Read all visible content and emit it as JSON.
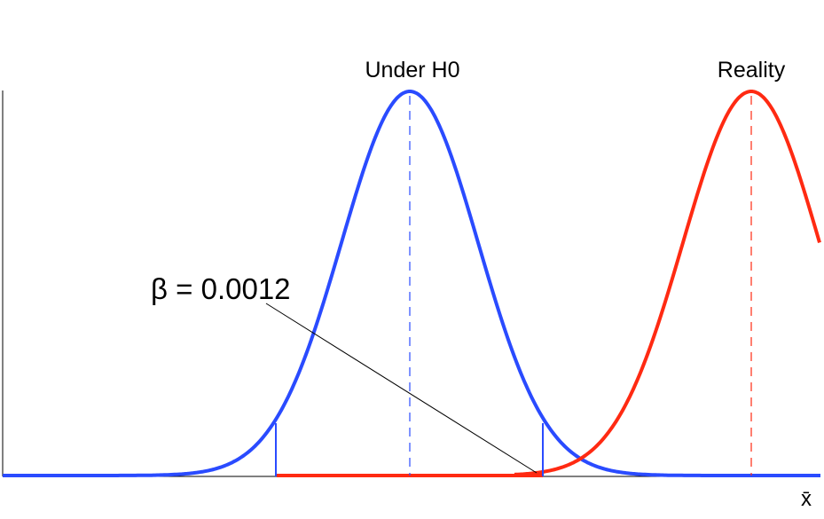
{
  "labels": {
    "under_h0": "Under H0",
    "reality": "Reality",
    "beta": "β = 0.0012",
    "x_axis": "x̄"
  },
  "colors": {
    "h0_curve": "#2a4bff",
    "reality_curve": "#ff2a12",
    "axis": "#000000",
    "pointer": "#000000"
  },
  "icons": {
    "axes": "axis-lines",
    "pointer": "leader-line"
  }
}
